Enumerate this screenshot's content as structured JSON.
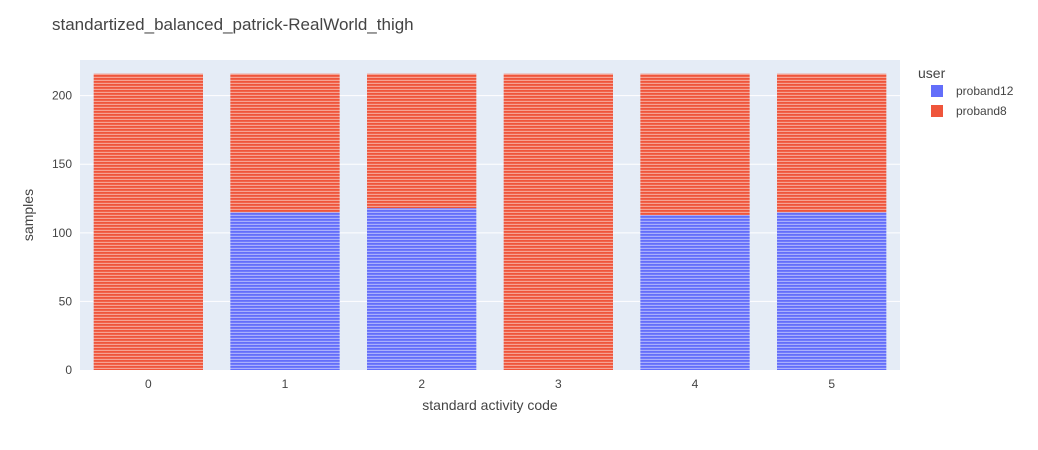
{
  "chart_data": {
    "type": "bar",
    "stacked": true,
    "title": "standartized_balanced_patrick-RealWorld_thigh",
    "xlabel": "standard activity code",
    "ylabel": "samples",
    "categories": [
      "0",
      "1",
      "2",
      "3",
      "4",
      "5"
    ],
    "ylim": [
      0,
      226
    ],
    "yticks": [
      0,
      50,
      100,
      150,
      200
    ],
    "grid": true,
    "legend": {
      "title": "user",
      "placement": "right"
    },
    "series": [
      {
        "name": "proband12",
        "color": "#636efa",
        "values": [
          0,
          115,
          118,
          0,
          113,
          115
        ]
      },
      {
        "name": "proband8",
        "color": "#ef553b",
        "values": [
          216,
          101,
          98,
          216,
          103,
          101
        ]
      }
    ]
  }
}
